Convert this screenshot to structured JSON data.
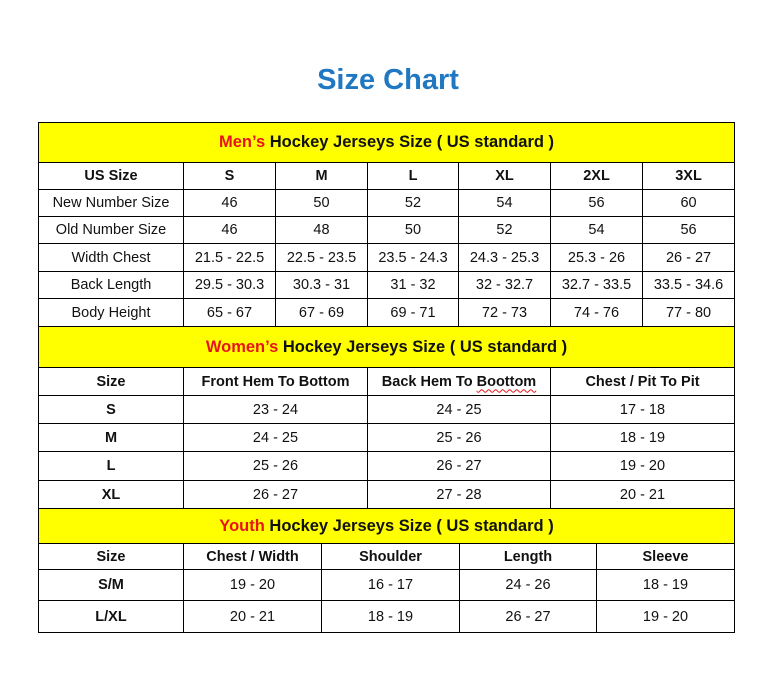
{
  "title": "Size Chart",
  "colors": {
    "title": "#1f78c1",
    "banner": "#ffff00",
    "highlight": "#e8141b"
  },
  "mens": {
    "banner_highlight": "Men’s",
    "banner_rest": " Hockey Jerseys Size ( US standard )",
    "header": [
      "US Size",
      "S",
      "M",
      "L",
      "XL",
      "2XL",
      "3XL"
    ],
    "rows": [
      [
        "New Number Size",
        "46",
        "50",
        "52",
        "54",
        "56",
        "60"
      ],
      [
        "Old Number Size",
        "46",
        "48",
        "50",
        "52",
        "54",
        "56"
      ],
      [
        "Width Chest",
        "21.5 - 22.5",
        "22.5 - 23.5",
        "23.5 - 24.3",
        "24.3 - 25.3",
        "25.3 - 26",
        "26 - 27"
      ],
      [
        "Back Length",
        "29.5 - 30.3",
        "30.3 - 31",
        "31 - 32",
        "32 - 32.7",
        "32.7 - 33.5",
        "33.5 - 34.6"
      ],
      [
        "Body Height",
        "65 - 67",
        "67 - 69",
        "69 - 71",
        "72 - 73",
        "74 - 76",
        "77 - 80"
      ]
    ]
  },
  "womens": {
    "banner_highlight": "Women’s",
    "banner_rest": " Hockey Jerseys Size ( US standard )",
    "header": [
      "Size",
      "Front Hem To Bottom",
      "Back Hem To Boottom",
      "Chest / Pit To Pit"
    ],
    "rows": [
      [
        "S",
        "23 - 24",
        "24 - 25",
        "17 - 18"
      ],
      [
        "M",
        "24 - 25",
        "25 - 26",
        "18 - 19"
      ],
      [
        "L",
        "25 - 26",
        "26 - 27",
        "19 - 20"
      ],
      [
        "XL",
        "26 - 27",
        "27 - 28",
        "20 - 21"
      ]
    ]
  },
  "youth": {
    "banner_highlight": "Youth",
    "banner_rest": " Hockey Jerseys Size ( US standard )",
    "header": [
      "Size",
      "Chest / Width",
      "Shoulder",
      "Length",
      "Sleeve"
    ],
    "rows": [
      [
        "S/M",
        "19 - 20",
        "16 - 17",
        "24 - 26",
        "18 - 19"
      ],
      [
        "L/XL",
        "20 - 21",
        "18 - 19",
        "26 - 27",
        "19 - 20"
      ]
    ]
  }
}
